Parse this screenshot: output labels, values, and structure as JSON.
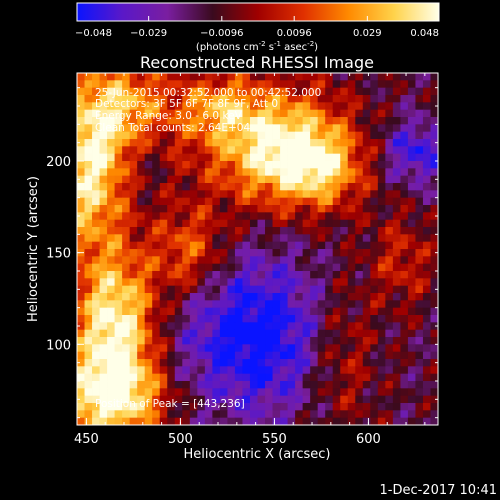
{
  "chart_data": {
    "type": "heatmap",
    "title": "Reconstructed RHESSI Image",
    "xlabel": "Heliocentric X (arcsec)",
    "ylabel": "Heliocentric Y (arcsec)",
    "xlim": [
      445,
      637
    ],
    "ylim": [
      56,
      248
    ],
    "x_ticks": [
      450,
      500,
      550,
      600
    ],
    "y_ticks": [
      100,
      150,
      200
    ],
    "colorbar": {
      "label_main": "(photons cm",
      "label_sup1": "-2",
      "label_mid1": " s",
      "label_sup2": "-1",
      "label_mid2": " asec",
      "label_sup3": "-2",
      "label_end": ")",
      "range": [
        -0.048,
        0.048
      ],
      "tick_labels": [
        "−0.048",
        "−0.029",
        "−0.0096",
        "0.0096",
        "0.029",
        "0.048"
      ],
      "tick_values": [
        -0.048,
        -0.029,
        -0.0096,
        0.0096,
        0.029,
        0.048
      ],
      "colors": [
        "#0a14ff",
        "#5a18c8",
        "#7a1ea0",
        "#3a0a1e",
        "#a00000",
        "#e03000",
        "#ff8a00",
        "#ffd24a",
        "#ffffe8"
      ]
    },
    "annotations": {
      "time": "25-Jun-2015 00:32:52.000 to 00:42:52.000",
      "detectors": "Detectors: 3F 5F 6F 7F 8F 9F, Att 0",
      "energy": "Energy Range: 3.0 - 6.0 keV",
      "clean": "Clean     Total counts: 2.64E+04",
      "peak": "Position of Peak = [443,236]"
    },
    "blobs": [
      {
        "x": 552,
        "y": 208,
        "sx": 26,
        "sy": 22,
        "a": 0.06
      },
      {
        "x": 575,
        "y": 195,
        "sx": 16,
        "sy": 14,
        "a": 0.03
      },
      {
        "x": 465,
        "y": 225,
        "sx": 22,
        "sy": 22,
        "a": 0.052
      },
      {
        "x": 450,
        "y": 185,
        "sx": 14,
        "sy": 24,
        "a": 0.045
      },
      {
        "x": 465,
        "y": 110,
        "sx": 16,
        "sy": 30,
        "a": 0.062
      },
      {
        "x": 462,
        "y": 70,
        "sx": 22,
        "sy": 16,
        "a": 0.048
      },
      {
        "x": 505,
        "y": 150,
        "sx": 14,
        "sy": 18,
        "a": 0.032
      },
      {
        "x": 520,
        "y": 230,
        "sx": 14,
        "sy": 12,
        "a": 0.028
      },
      {
        "x": 585,
        "y": 95,
        "sx": 14,
        "sy": 30,
        "a": 0.022
      },
      {
        "x": 618,
        "y": 145,
        "sx": 12,
        "sy": 18,
        "a": 0.02
      },
      {
        "x": 540,
        "y": 105,
        "sx": 30,
        "sy": 30,
        "a": -0.04
      },
      {
        "x": 625,
        "y": 205,
        "sx": 12,
        "sy": 12,
        "a": -0.03
      },
      {
        "x": 480,
        "y": 205,
        "sx": 10,
        "sy": 14,
        "a": -0.018
      }
    ]
  },
  "footer": {
    "date": "1-Dec-2017 10:41"
  }
}
